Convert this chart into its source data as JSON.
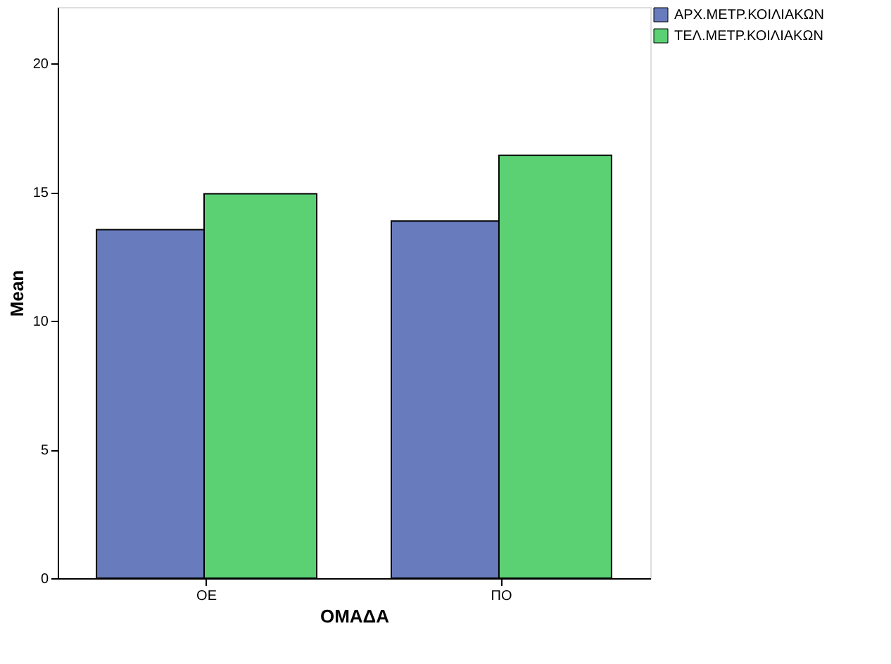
{
  "chart_data": {
    "type": "bar",
    "xlabel": "ΟΜΑΔΑ",
    "ylabel": "Mean",
    "categories": [
      "ΟΕ",
      "ΠΟ"
    ],
    "series": [
      {
        "name": "ΑΡΧ.ΜΕΤΡ.ΚΟΙΛΙΑΚΩΝ",
        "color": "#687cbd",
        "values": [
          13.55,
          13.88
        ]
      },
      {
        "name": "ΤΕΛ.ΜΕΤΡ.ΚΟΙΛΙΑΚΩΝ",
        "color": "#5bd174",
        "values": [
          14.94,
          16.44
        ]
      }
    ],
    "ylim": [
      0,
      22.2
    ],
    "yticks": [
      0,
      5,
      10,
      15,
      20
    ],
    "grid": false,
    "legend": "top right"
  }
}
